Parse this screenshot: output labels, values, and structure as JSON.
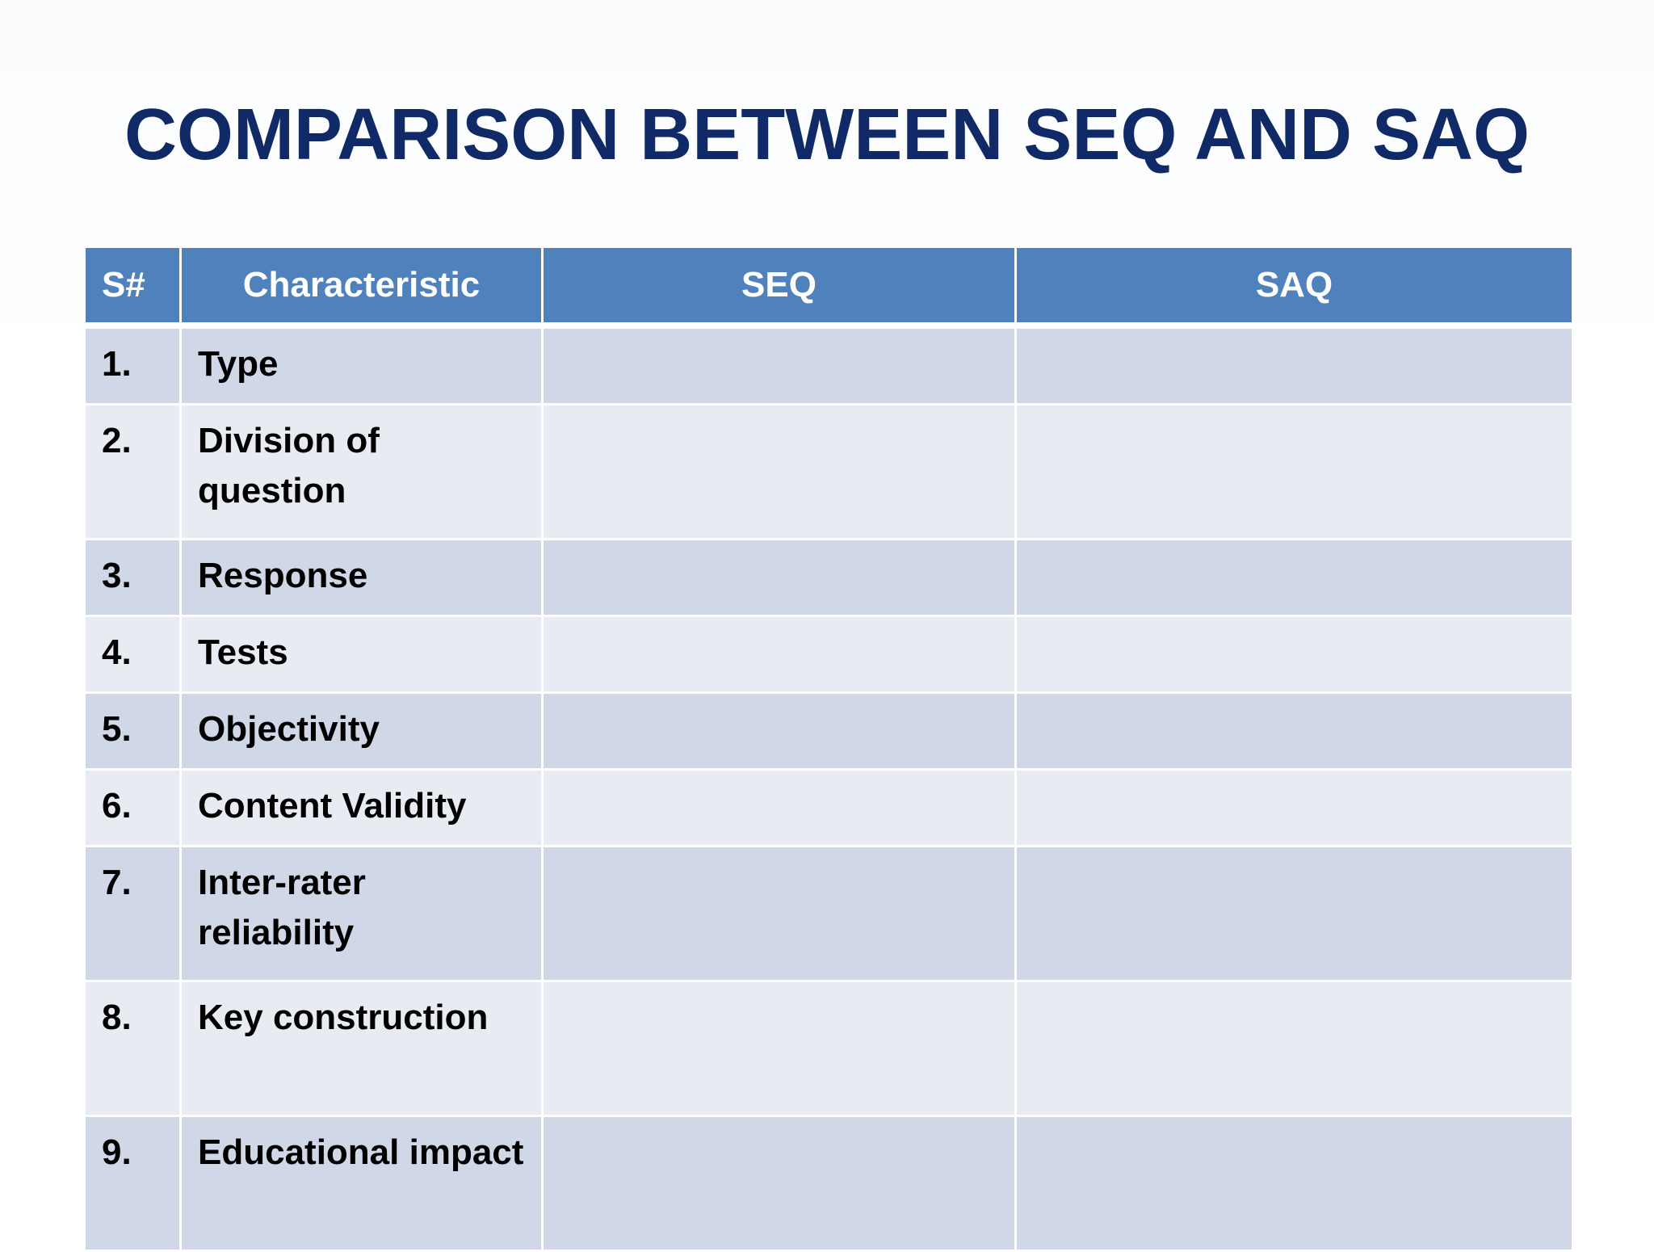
{
  "title": "COMPARISON BETWEEN SEQ AND SAQ",
  "colors": {
    "title": "#0f2a66",
    "header_bg": "#4f81bd",
    "row_odd": "#d0d8e8",
    "row_even": "#e9ebf3"
  },
  "table": {
    "headers": {
      "num": "S#",
      "characteristic": "Characteristic",
      "seq": "SEQ",
      "saq": "SAQ"
    },
    "rows": [
      {
        "num": "1.",
        "characteristic": "Type",
        "seq": "",
        "saq": ""
      },
      {
        "num": "2.",
        "characteristic": "Division of question",
        "seq": "",
        "saq": ""
      },
      {
        "num": "3.",
        "characteristic": "Response",
        "seq": "",
        "saq": ""
      },
      {
        "num": "4.",
        "characteristic": "Tests",
        "seq": "",
        "saq": ""
      },
      {
        "num": "5.",
        "characteristic": "Objectivity",
        "seq": "",
        "saq": ""
      },
      {
        "num": "6.",
        "characteristic": "Content Validity",
        "seq": "",
        "saq": ""
      },
      {
        "num": "7.",
        "characteristic": "Inter-rater reliability",
        "seq": "",
        "saq": ""
      },
      {
        "num": "8.",
        "characteristic": "Key construction",
        "seq": "",
        "saq": ""
      },
      {
        "num": "9.",
        "characteristic": "Educational impact",
        "seq": "",
        "saq": ""
      }
    ]
  }
}
